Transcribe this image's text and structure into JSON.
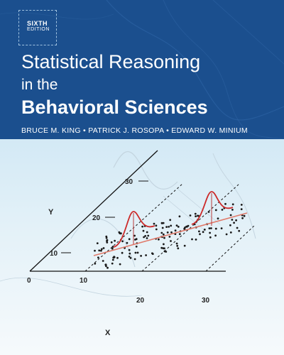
{
  "cover": {
    "edition_main": "SIXTH",
    "edition_sub": "EDITION",
    "title_line1": "Statistical Reasoning",
    "title_line2": "in the",
    "title_line3": "Behavioral Sciences",
    "authors": "BRUCE M. KING • PATRICK J. ROSOPA • EDWARD W. MINIUM"
  },
  "figure": {
    "y_axis_label": "Y",
    "x_axis_label": "X",
    "origin_label": "0",
    "x_ticks": [
      "10",
      "20",
      "30"
    ],
    "y_ticks": [
      "10",
      "20",
      "30"
    ],
    "colors": {
      "header_band": "#1b4f8e",
      "regression_line": "#e07a6a",
      "distribution_curve": "#cc2a2a",
      "points": "#1a1a1a"
    }
  }
}
